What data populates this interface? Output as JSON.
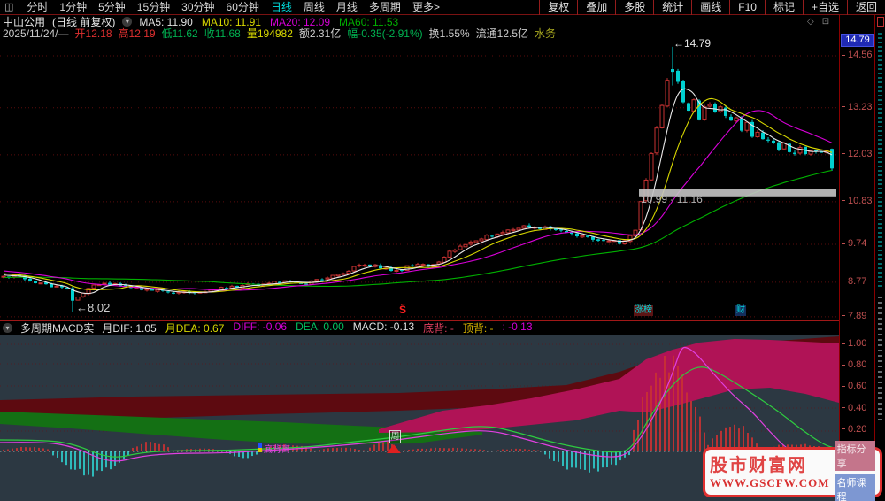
{
  "toolbar": {
    "periods": [
      "分时",
      "1分钟",
      "5分钟",
      "15分钟",
      "30分钟",
      "60分钟",
      "日线",
      "周线",
      "月线",
      "多周期",
      "更多>"
    ],
    "active_period": "日线",
    "actions": [
      "复权",
      "叠加",
      "多股",
      "统计",
      "画线",
      "F10",
      "标记",
      "+自选",
      "返回"
    ]
  },
  "icons": {
    "sidebar_toggle": "◫",
    "dropdown_chevron": "▾",
    "diamond": "◇",
    "panel_window": "⊡",
    "macd_chevron": "▾"
  },
  "info": {
    "title": "中山公用",
    "subtitle": "(日线 前复权)",
    "ma_values": [
      {
        "label": "MA5: 11.90",
        "color": "#e0e0e0"
      },
      {
        "label": "MA10: 11.91",
        "color": "#d8d800"
      },
      {
        "label": "MA20: 12.09",
        "color": "#d800d8"
      },
      {
        "label": "MA60: 11.53",
        "color": "#00b000"
      }
    ],
    "ohlc": [
      {
        "text": "2025/11/24/—",
        "color": "#cccccc"
      },
      {
        "text": "开12.18",
        "color": "#e03030"
      },
      {
        "text": "高12.19",
        "color": "#e03030"
      },
      {
        "text": "低11.62",
        "color": "#00b050"
      },
      {
        "text": "收11.68",
        "color": "#00b050"
      },
      {
        "text": "量194982",
        "color": "#d8d800"
      },
      {
        "text": "额2.31亿",
        "color": "#cccccc"
      },
      {
        "text": "幅-0.35(-2.91%)",
        "color": "#00b050"
      },
      {
        "text": "换1.55%",
        "color": "#cccccc"
      },
      {
        "text": "流通12.5亿",
        "color": "#cccccc"
      },
      {
        "text": "水务",
        "color": "#a8a820"
      }
    ]
  },
  "price_axis": {
    "current_high_label": "14.79"
  },
  "macd_header": {
    "indicator_name": "多周期MACD实",
    "values": [
      {
        "text": "月DIF: 1.05",
        "color": "#e0e0e0"
      },
      {
        "text": "月DEA: 0.67",
        "color": "#d8d800"
      },
      {
        "text": "DIFF: -0.06",
        "color": "#d800d8"
      },
      {
        "text": "DEA: 0.00",
        "color": "#00c060"
      },
      {
        "text": "MACD: -0.13",
        "color": "#e0e0e0"
      },
      {
        "text": "底背: -",
        "color": "#e04060"
      },
      {
        "text": "顶背: -",
        "color": "#d8b400"
      },
      {
        "text": ": -0.13",
        "color": "#d800d8"
      }
    ]
  },
  "annotations": {
    "high_label": "←14.79",
    "low_label": "←8.02",
    "band_label": "10.99 - 11.16",
    "signal_s": "Ŝ",
    "badge_zhang": "涨榜",
    "badge_cai": "财",
    "divergence_label": "底背离",
    "week_marker": "周"
  },
  "watermark": {
    "site_name": "股市财富网",
    "site_url": "WWW.GSCFW.COM",
    "badge1": "指标分享",
    "badge2": "名师课程"
  },
  "colors": {
    "up": "#c83232",
    "down": "#00d0d0",
    "ma5": "#e8e8e8",
    "ma10": "#d8d800",
    "ma20": "#d800d8",
    "ma60": "#00b000",
    "grid": "#5a0c0c",
    "axis_text": "#c05050",
    "macd_bg": "#2c3842",
    "maroon_band": "#5d0a10",
    "green_band": "#147014",
    "pink_band": "#b01356",
    "hist_up": "#c83232",
    "hist_down": "#2ec8c8",
    "support_band": "#c4c4c4"
  },
  "chart_data": {
    "type": "candlestick+macd",
    "main": {
      "title": "中山公用 日线",
      "y_axis_ticks": [
        14.56,
        13.23,
        12.03,
        10.83,
        9.74,
        8.77,
        7.89
      ],
      "price_top_label": 14.79,
      "last_bar": {
        "date": "2025/11/24",
        "open": 12.18,
        "high": 12.19,
        "low": 11.62,
        "close": 11.68,
        "volume": 194982,
        "amount": "2.31亿",
        "change": "-0.35(-2.91%)",
        "turnover": "1.55%"
      },
      "close_path": [
        [
          4,
          8.88
        ],
        [
          20,
          8.92
        ],
        [
          40,
          8.75
        ],
        [
          60,
          8.68
        ],
        [
          78,
          8.6
        ],
        [
          84,
          8.3
        ],
        [
          90,
          8.45
        ],
        [
          100,
          8.62
        ],
        [
          115,
          8.72
        ],
        [
          130,
          8.7
        ],
        [
          150,
          8.62
        ],
        [
          170,
          8.55
        ],
        [
          190,
          8.52
        ],
        [
          210,
          8.5
        ],
        [
          230,
          8.55
        ],
        [
          250,
          8.6
        ],
        [
          270,
          8.68
        ],
        [
          290,
          8.7
        ],
        [
          305,
          8.76
        ],
        [
          320,
          8.8
        ],
        [
          335,
          8.72
        ],
        [
          350,
          8.78
        ],
        [
          365,
          8.85
        ],
        [
          380,
          8.95
        ],
        [
          395,
          9.1
        ],
        [
          405,
          9.25
        ],
        [
          420,
          9.2
        ],
        [
          435,
          9.12
        ],
        [
          445,
          9.05
        ],
        [
          460,
          9.15
        ],
        [
          475,
          9.2
        ],
        [
          490,
          9.22
        ],
        [
          505,
          9.5
        ],
        [
          520,
          9.65
        ],
        [
          535,
          9.8
        ],
        [
          550,
          9.95
        ],
        [
          565,
          10.05
        ],
        [
          580,
          10.12
        ],
        [
          595,
          10.22
        ],
        [
          610,
          10.15
        ],
        [
          625,
          10.18
        ],
        [
          640,
          10.05
        ],
        [
          655,
          9.95
        ],
        [
          670,
          9.85
        ],
        [
          685,
          9.78
        ],
        [
          700,
          9.8
        ],
        [
          710,
          9.87
        ],
        [
          718,
          10.1
        ],
        [
          724,
          10.8
        ],
        [
          730,
          11.4
        ],
        [
          736,
          12.1
        ],
        [
          742,
          12.7
        ],
        [
          748,
          13.3
        ],
        [
          754,
          13.9
        ],
        [
          760,
          14.15
        ],
        [
          766,
          13.9
        ],
        [
          772,
          13.4
        ],
        [
          778,
          13.1
        ],
        [
          784,
          13.5
        ],
        [
          790,
          12.95
        ],
        [
          796,
          13.2
        ],
        [
          802,
          13.35
        ],
        [
          808,
          13.1
        ],
        [
          814,
          13.25
        ],
        [
          820,
          13.05
        ],
        [
          826,
          12.9
        ],
        [
          832,
          12.95
        ],
        [
          838,
          12.7
        ],
        [
          844,
          12.8
        ],
        [
          850,
          12.55
        ],
        [
          856,
          12.6
        ],
        [
          862,
          12.4
        ],
        [
          868,
          12.45
        ],
        [
          874,
          12.3
        ],
        [
          880,
          12.2
        ],
        [
          886,
          12.3
        ],
        [
          892,
          12.15
        ],
        [
          898,
          12.1
        ],
        [
          904,
          12.2
        ],
        [
          910,
          12.05
        ],
        [
          916,
          12.1
        ],
        [
          922,
          12.15
        ],
        [
          928,
          12.05
        ],
        [
          934,
          12.18
        ],
        [
          940,
          11.68
        ]
      ],
      "candle_overrides": [
        {
          "x": 82,
          "open": 8.62,
          "high": 8.66,
          "low": 8.02,
          "close": 8.3
        },
        {
          "x": 760,
          "open": 14.22,
          "high": 14.79,
          "low": 13.8,
          "close": 14.15
        },
        {
          "x": 940,
          "open": 12.18,
          "high": 12.19,
          "low": 11.62,
          "close": 11.68
        }
      ],
      "prehistory": {
        "flat": 8.8,
        "flat_count": 40,
        "ramp_from": 9.2,
        "ramp_to": 8.95,
        "ramp_count": 20
      },
      "support_band": {
        "x0": 722,
        "x1": 945,
        "price_high": 11.16,
        "price_low": 10.99
      }
    },
    "macd": {
      "y_ticks": [
        1.0,
        0.8,
        0.6,
        0.4,
        0.2,
        0.0
      ],
      "values": {
        "month_dif": 1.05,
        "month_dea": 0.67,
        "diff": -0.06,
        "dea": 0.0,
        "macd": -0.13
      },
      "maroon_band": {
        "upper": [
          [
            0,
            74
          ],
          [
            150,
            70
          ],
          [
            300,
            68
          ],
          [
            450,
            66
          ],
          [
            550,
            62
          ],
          [
            640,
            57
          ],
          [
            700,
            42
          ],
          [
            740,
            28
          ],
          [
            780,
            20
          ],
          [
            830,
            11
          ],
          [
            880,
            7
          ],
          [
            948,
            2
          ]
        ],
        "lower": [
          [
            0,
            100
          ],
          [
            150,
            95
          ],
          [
            300,
            90
          ],
          [
            450,
            86
          ],
          [
            550,
            82
          ],
          [
            640,
            74
          ],
          [
            700,
            66
          ],
          [
            740,
            57
          ],
          [
            780,
            47
          ],
          [
            830,
            42
          ],
          [
            880,
            44
          ],
          [
            948,
            54
          ]
        ]
      },
      "green_band": {
        "upper": [
          [
            0,
            87
          ],
          [
            80,
            90
          ],
          [
            160,
            93
          ],
          [
            240,
            96
          ],
          [
            320,
            99
          ],
          [
            400,
            103
          ],
          [
            470,
            106
          ],
          [
            545,
            110
          ]
        ],
        "lower": [
          [
            0,
            101
          ],
          [
            80,
            106
          ],
          [
            160,
            112
          ],
          [
            240,
            118
          ],
          [
            320,
            123
          ],
          [
            400,
            124
          ],
          [
            470,
            123
          ],
          [
            545,
            113
          ]
        ]
      },
      "pink_band": {
        "upper": [
          [
            428,
            107
          ],
          [
            500,
            86
          ],
          [
            550,
            80
          ],
          [
            600,
            72
          ],
          [
            650,
            62
          ],
          [
            700,
            50
          ],
          [
            730,
            28
          ],
          [
            760,
            17
          ],
          [
            790,
            9
          ],
          [
            830,
            5
          ],
          [
            870,
            6
          ],
          [
            910,
            8
          ],
          [
            948,
            10
          ]
        ],
        "lower": [
          [
            428,
            111
          ],
          [
            500,
            110
          ],
          [
            550,
            107
          ],
          [
            600,
            102
          ],
          [
            650,
            97
          ],
          [
            700,
            86
          ],
          [
            730,
            88
          ],
          [
            760,
            81
          ],
          [
            790,
            73
          ],
          [
            830,
            62
          ],
          [
            870,
            60
          ],
          [
            910,
            67
          ],
          [
            948,
            77
          ]
        ]
      },
      "dif_line": [
        [
          0,
          122
        ],
        [
          40,
          121
        ],
        [
          80,
          125
        ],
        [
          125,
          146
        ],
        [
          160,
          137
        ],
        [
          200,
          134
        ],
        [
          250,
          134
        ],
        [
          300,
          131
        ],
        [
          350,
          128
        ],
        [
          400,
          124
        ],
        [
          450,
          119
        ],
        [
          500,
          112
        ],
        [
          550,
          107
        ],
        [
          590,
          117
        ],
        [
          625,
          127
        ],
        [
          665,
          136
        ],
        [
          695,
          139
        ],
        [
          710,
          134
        ],
        [
          725,
          116
        ],
        [
          740,
          90
        ],
        [
          752,
          64
        ],
        [
          762,
          38
        ],
        [
          770,
          14
        ],
        [
          778,
          15
        ],
        [
          788,
          23
        ],
        [
          800,
          37
        ],
        [
          815,
          54
        ],
        [
          830,
          70
        ],
        [
          850,
          87
        ],
        [
          870,
          110
        ],
        [
          890,
          130
        ],
        [
          910,
          140
        ],
        [
          928,
          143
        ]
      ],
      "dea_line": [
        [
          0,
          119
        ],
        [
          40,
          119
        ],
        [
          80,
          122
        ],
        [
          125,
          141
        ],
        [
          160,
          133
        ],
        [
          200,
          131
        ],
        [
          250,
          131
        ],
        [
          300,
          129
        ],
        [
          350,
          127
        ],
        [
          400,
          121
        ],
        [
          450,
          116
        ],
        [
          500,
          108
        ],
        [
          550,
          102
        ],
        [
          590,
          112
        ],
        [
          625,
          122
        ],
        [
          665,
          130
        ],
        [
          700,
          134
        ],
        [
          715,
          127
        ],
        [
          735,
          92
        ],
        [
          755,
          62
        ],
        [
          775,
          42
        ],
        [
          793,
          35
        ],
        [
          810,
          42
        ],
        [
          830,
          54
        ],
        [
          855,
          70
        ],
        [
          880,
          87
        ],
        [
          905,
          107
        ],
        [
          930,
          124
        ],
        [
          945,
          129
        ]
      ],
      "histogram_zero_y": 132,
      "histogram_segments": [
        {
          "x0": 4,
          "x1": 56,
          "dir": "up",
          "peak": 5,
          "edge": 2
        },
        {
          "x0": 60,
          "x1": 146,
          "dir": "down",
          "peak": 25,
          "edge": 4
        },
        {
          "x0": 150,
          "x1": 192,
          "dir": "up",
          "peak": 11,
          "edge": 4
        },
        {
          "x0": 196,
          "x1": 256,
          "dir": "up",
          "peak": 3,
          "edge": 1
        },
        {
          "x0": 260,
          "x1": 292,
          "dir": "down",
          "peak": 7,
          "edge": 3
        },
        {
          "x0": 296,
          "x1": 352,
          "dir": "up",
          "peak": 8,
          "edge": 3
        },
        {
          "x0": 356,
          "x1": 414,
          "dir": "up",
          "peak": 4,
          "edge": 1
        },
        {
          "x0": 418,
          "x1": 448,
          "dir": "up",
          "peak": 11,
          "edge": 4
        },
        {
          "x0": 452,
          "x1": 554,
          "dir": "up",
          "peak": 4,
          "edge": 1
        },
        {
          "x0": 558,
          "x1": 612,
          "dir": "up",
          "peak": 3,
          "edge": 1
        },
        {
          "x0": 616,
          "x1": 712,
          "dir": "down",
          "peak": 23,
          "edge": 4
        },
        {
          "x0": 716,
          "x1": 796,
          "dir": "up",
          "peak": 100,
          "edge": 25
        },
        {
          "x0": 800,
          "x1": 856,
          "dir": "up",
          "peak": 30,
          "edge": 8
        },
        {
          "x0": 860,
          "x1": 936,
          "dir": "up",
          "peak": 8,
          "edge": 3
        }
      ]
    }
  }
}
